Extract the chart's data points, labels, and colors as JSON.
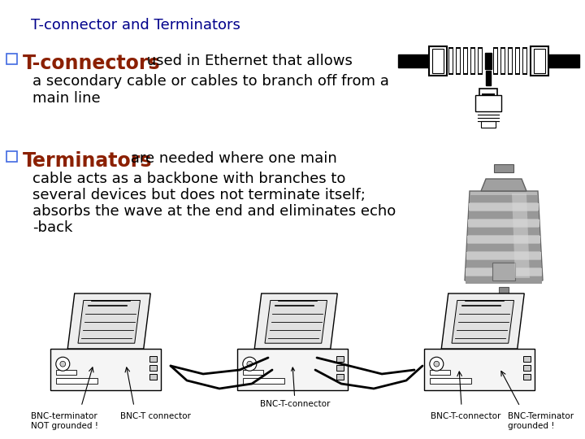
{
  "background_color": "#ffffff",
  "title": "T-connector and Terminators",
  "title_color": "#00008B",
  "title_fontsize": 13,
  "bullet1_keyword": "T-connectors",
  "bullet1_keyword_color": "#8B2000",
  "bullet1_text1": " used in Ethernet that allows",
  "bullet1_text2": "a secondary cable or cables to branch off from a",
  "bullet1_text3": "main line",
  "bullet1_text_color": "#000000",
  "bullet1_keyword_fontsize": 17,
  "bullet1_text_fontsize": 13,
  "bullet2_keyword": "Terminators",
  "bullet2_keyword_color": "#8B2000",
  "bullet2_text1": " are needed where one main",
  "bullet2_text2": "cable acts as a backbone with branches to",
  "bullet2_text3": "several devices but does not terminate itself;",
  "bullet2_text4": "absorbs the wave at the end and eliminates echo",
  "bullet2_text5": "-back",
  "bullet2_text_color": "#000000",
  "bullet2_keyword_fontsize": 17,
  "bullet2_text_fontsize": 13,
  "bullet_square_color": "#4169E1",
  "label_bnc_t_mid": "BNC-T-connector",
  "label_bnc_t_left1": "BNC-terminator",
  "label_bnc_t_left2": "NOT grounded !",
  "label_bnc_t_left3": "BNC-T connector",
  "label_bnc_t_right1": "BNC-T-connector",
  "label_bnc_terminator1": "BNC-Terminator",
  "label_bnc_terminator2": "grounded !",
  "font_family": "DejaVu Sans"
}
